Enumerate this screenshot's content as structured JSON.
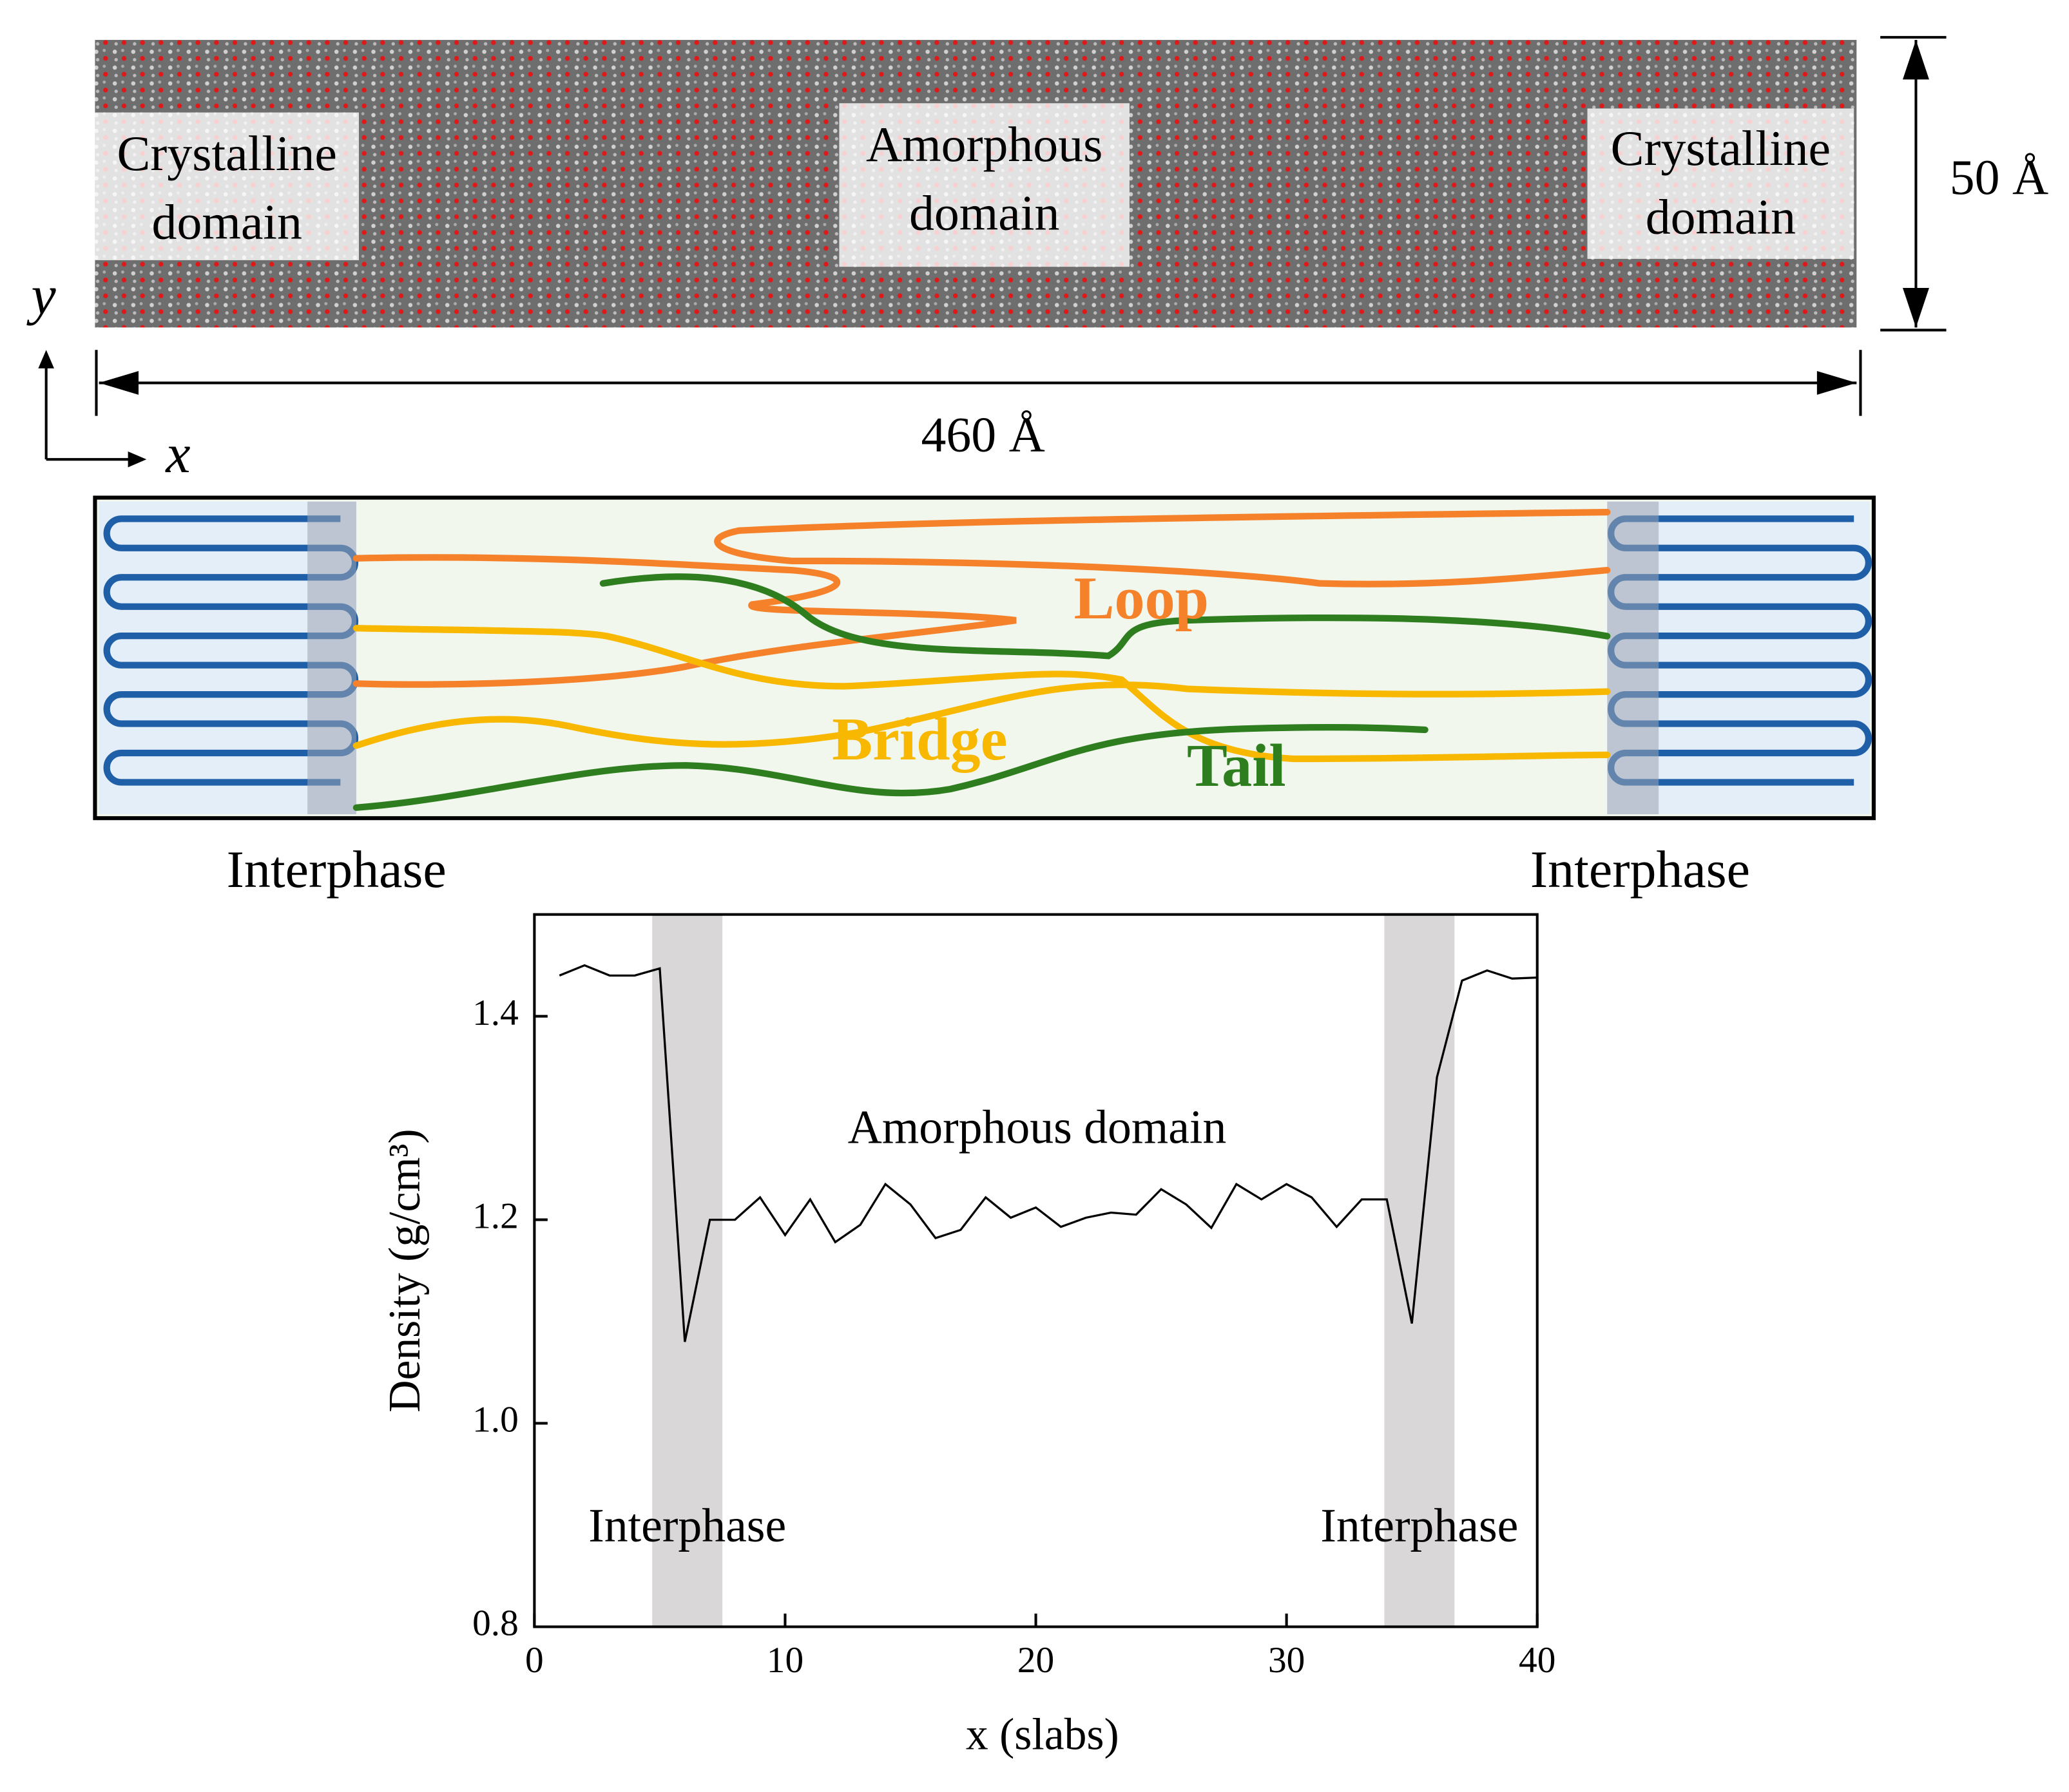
{
  "structure": {
    "labels": [
      [
        "Crystalline",
        "domain"
      ],
      [
        "Amorphous",
        "domain"
      ],
      [
        "Crystalline",
        "domain"
      ]
    ],
    "height_label": "50 Å",
    "width_label": "460 Å",
    "axis_x": "x",
    "axis_y": "y"
  },
  "schematic": {
    "loop": "Loop",
    "bridge": "Bridge",
    "tail": "Tail",
    "interphase_left": "Interphase",
    "interphase_right": "Interphase"
  },
  "chart_data": {
    "type": "line",
    "x_label": "x (slabs)",
    "y_label": "Density (g/cm³)",
    "color": "#000000",
    "x": [
      1,
      2,
      3,
      4,
      5,
      6,
      7,
      8,
      9,
      10,
      11,
      12,
      13,
      14,
      15,
      16,
      17,
      18,
      19,
      20,
      21,
      22,
      23,
      24,
      25,
      26,
      27,
      28,
      29,
      30,
      31,
      32,
      33,
      34,
      35,
      36,
      37,
      38,
      39,
      40
    ],
    "values": [
      1.44,
      1.45,
      1.44,
      1.44,
      1.447,
      1.08,
      1.2,
      1.2,
      1.222,
      1.185,
      1.22,
      1.178,
      1.195,
      1.235,
      1.215,
      1.182,
      1.19,
      1.222,
      1.202,
      1.212,
      1.193,
      1.202,
      1.207,
      1.205,
      1.23,
      1.215,
      1.192,
      1.235,
      1.22,
      1.235,
      1.222,
      1.193,
      1.22,
      1.22,
      1.098,
      1.34,
      1.435,
      1.445,
      1.437,
      1.438
    ],
    "xlim": [
      0,
      40
    ],
    "ylim": [
      0.8,
      1.5
    ],
    "xticks": [
      0,
      10,
      20,
      30,
      40
    ],
    "yticks": [
      0.8,
      {
        "value": 1,
        "label": "1.0"
      },
      1.2,
      1.4
    ],
    "regions": [
      {
        "label": "Interphase",
        "range": [
          4.7,
          7.5
        ]
      },
      {
        "label": "Interphase",
        "range": [
          33.9,
          36.7
        ]
      }
    ],
    "annotations": [
      {
        "text": "Amorphous domain",
        "x": 20.05,
        "y": 1.286
      }
    ]
  }
}
